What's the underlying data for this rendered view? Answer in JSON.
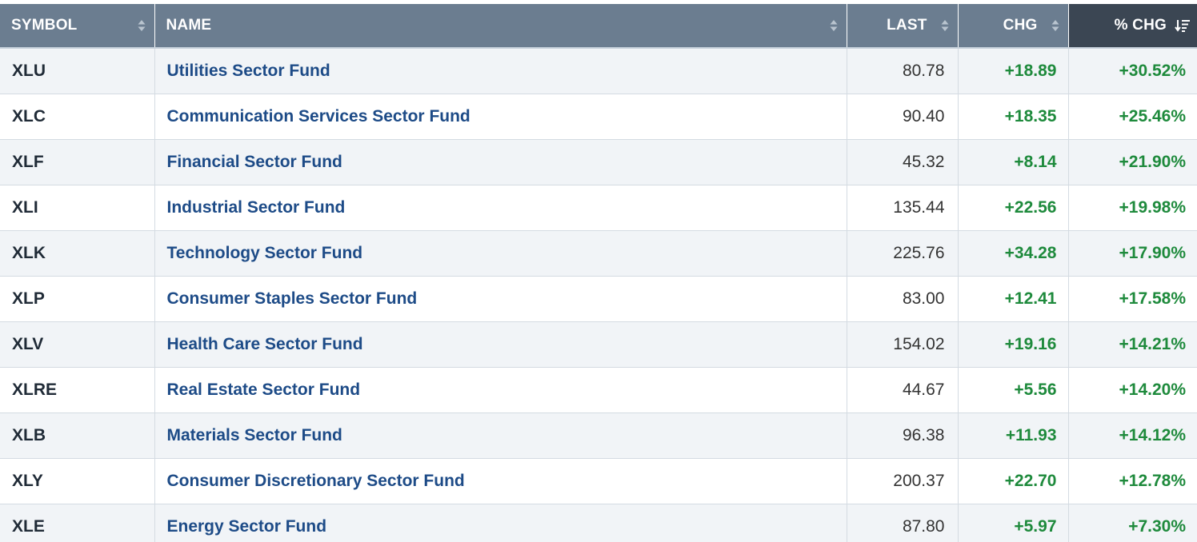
{
  "table": {
    "headers": {
      "symbol": "SYMBOL",
      "name": "NAME",
      "last": "LAST",
      "chg": "CHG",
      "pct_chg": "% CHG"
    },
    "sorted_column": "pct_chg",
    "sort_direction": "descending",
    "colors": {
      "header_bg": "#6b7d90",
      "sorted_header_bg": "#3b4653",
      "name_link": "#1d4b87",
      "positive": "#1e8a3c",
      "row_alt": "#f1f4f7"
    },
    "rows": [
      {
        "symbol": "XLU",
        "name": "Utilities Sector Fund",
        "last": "80.78",
        "chg": "+18.89",
        "pct_chg": "+30.52%"
      },
      {
        "symbol": "XLC",
        "name": "Communication Services Sector Fund",
        "last": "90.40",
        "chg": "+18.35",
        "pct_chg": "+25.46%"
      },
      {
        "symbol": "XLF",
        "name": "Financial Sector Fund",
        "last": "45.32",
        "chg": "+8.14",
        "pct_chg": "+21.90%"
      },
      {
        "symbol": "XLI",
        "name": "Industrial Sector Fund",
        "last": "135.44",
        "chg": "+22.56",
        "pct_chg": "+19.98%"
      },
      {
        "symbol": "XLK",
        "name": "Technology Sector Fund",
        "last": "225.76",
        "chg": "+34.28",
        "pct_chg": "+17.90%"
      },
      {
        "symbol": "XLP",
        "name": "Consumer Staples Sector Fund",
        "last": "83.00",
        "chg": "+12.41",
        "pct_chg": "+17.58%"
      },
      {
        "symbol": "XLV",
        "name": "Health Care Sector Fund",
        "last": "154.02",
        "chg": "+19.16",
        "pct_chg": "+14.21%"
      },
      {
        "symbol": "XLRE",
        "name": "Real Estate Sector Fund",
        "last": "44.67",
        "chg": "+5.56",
        "pct_chg": "+14.20%"
      },
      {
        "symbol": "XLB",
        "name": "Materials Sector Fund",
        "last": "96.38",
        "chg": "+11.93",
        "pct_chg": "+14.12%"
      },
      {
        "symbol": "XLY",
        "name": "Consumer Discretionary Sector Fund",
        "last": "200.37",
        "chg": "+22.70",
        "pct_chg": "+12.78%"
      },
      {
        "symbol": "XLE",
        "name": "Energy Sector Fund",
        "last": "87.80",
        "chg": "+5.97",
        "pct_chg": "+7.30%"
      }
    ]
  }
}
